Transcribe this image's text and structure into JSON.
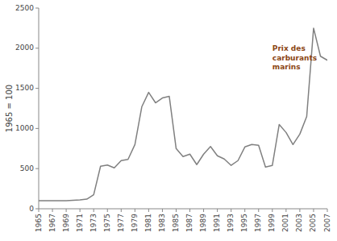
{
  "chart_data": {
    "type": "line",
    "x": [
      1965,
      1966,
      1967,
      1968,
      1969,
      1970,
      1971,
      1972,
      1973,
      1974,
      1975,
      1976,
      1977,
      1978,
      1979,
      1980,
      1981,
      1982,
      1983,
      1984,
      1985,
      1986,
      1987,
      1988,
      1989,
      1990,
      1991,
      1992,
      1993,
      1994,
      1995,
      1996,
      1997,
      1998,
      1999,
      2000,
      2001,
      2002,
      2003,
      2004,
      2005,
      2006,
      2007
    ],
    "values": [
      100,
      100,
      100,
      100,
      100,
      105,
      110,
      120,
      175,
      530,
      545,
      510,
      600,
      615,
      800,
      1270,
      1450,
      1320,
      1380,
      1400,
      750,
      650,
      680,
      550,
      680,
      775,
      660,
      620,
      540,
      600,
      770,
      800,
      790,
      520,
      540,
      1050,
      950,
      800,
      930,
      1150,
      2250,
      1900,
      1850
    ],
    "color": "#808080",
    "y_label": "1965 = 100",
    "xlim": [
      1965,
      2007
    ],
    "xticks": [
      1965,
      1967,
      1969,
      1971,
      1973,
      1975,
      1977,
      1979,
      1981,
      1983,
      1985,
      1987,
      1989,
      1991,
      1993,
      1995,
      1997,
      1999,
      2001,
      2003,
      2005,
      2007
    ],
    "ylim": [
      0,
      2500
    ],
    "yticks": [
      0,
      500,
      1000,
      1500,
      2000,
      2500
    ],
    "grid": false,
    "annotations": [
      {
        "text": "Prix des\ncarburants\nmarins",
        "x": 1999,
        "y": 2050,
        "color": "#8B4513"
      }
    ]
  }
}
